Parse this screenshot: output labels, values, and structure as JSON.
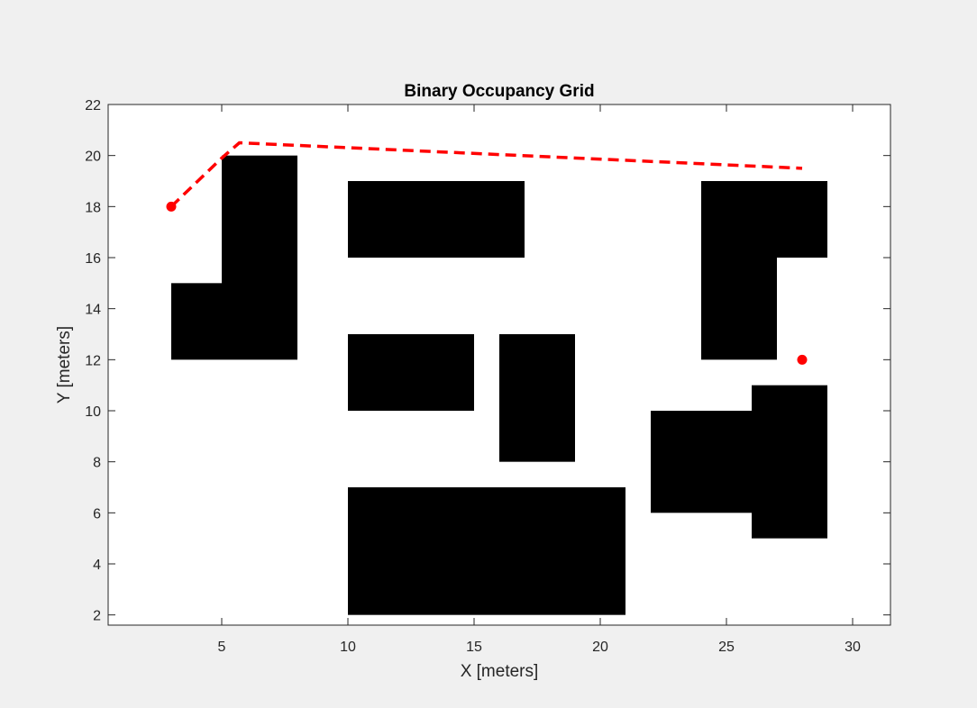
{
  "chart_data": {
    "type": "heatmap",
    "title": "Binary Occupancy Grid",
    "xlabel": "X [meters]",
    "ylabel": "Y [meters]",
    "xlim": [
      0.5,
      31.5
    ],
    "ylim": [
      1.6,
      22
    ],
    "xticks": [
      5,
      10,
      15,
      20,
      25,
      30
    ],
    "yticks": [
      2,
      4,
      6,
      8,
      10,
      12,
      14,
      16,
      18,
      20,
      22
    ],
    "grid": false,
    "obstacles": [
      {
        "x0": 3,
        "x1": 5,
        "y0": 12,
        "y1": 15
      },
      {
        "x0": 5,
        "x1": 8,
        "y0": 12,
        "y1": 20
      },
      {
        "x0": 10,
        "x1": 17,
        "y0": 16,
        "y1": 19
      },
      {
        "x0": 10,
        "x1": 15,
        "y0": 10,
        "y1": 13
      },
      {
        "x0": 16,
        "x1": 19,
        "y0": 8,
        "y1": 13
      },
      {
        "x0": 10,
        "x1": 21,
        "y0": 2,
        "y1": 7
      },
      {
        "x0": 24,
        "x1": 27,
        "y0": 12,
        "y1": 19
      },
      {
        "x0": 27,
        "x1": 29,
        "y0": 16,
        "y1": 19
      },
      {
        "x0": 22,
        "x1": 26,
        "y0": 6,
        "y1": 10
      },
      {
        "x0": 26,
        "x1": 29,
        "y0": 5,
        "y1": 11
      }
    ],
    "series": [
      {
        "x": [
          3,
          5,
          5.7,
          28
        ],
        "y": [
          18,
          19.9,
          20.5,
          19.5
        ]
      }
    ],
    "markers": [
      {
        "x": 3,
        "y": 18
      },
      {
        "x": 28,
        "y": 12
      }
    ],
    "colors": {
      "obstacle": "#000000",
      "free": "#ffffff",
      "path": "#ff0000",
      "marker": "#ff0000"
    }
  }
}
